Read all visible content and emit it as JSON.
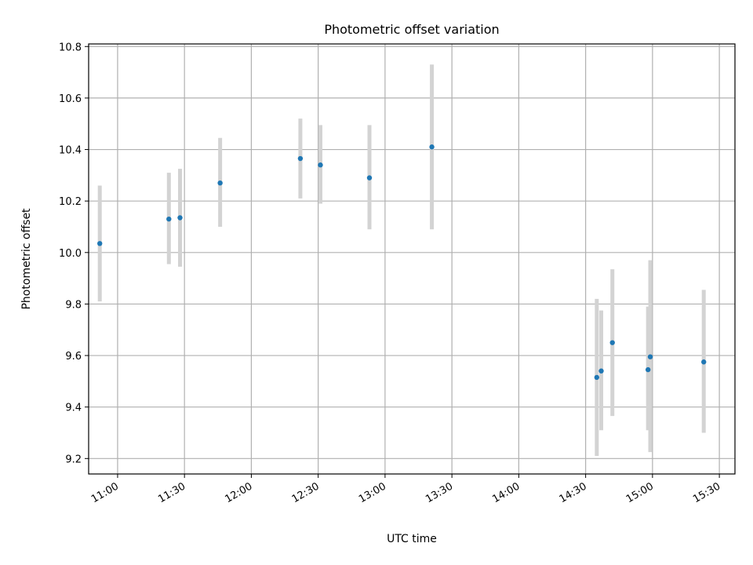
{
  "chart_data": {
    "type": "scatter",
    "title": "Photometric offset variation",
    "xlabel": "UTC time",
    "ylabel": "Photometric offset",
    "xlim": [
      "10:47",
      "15:37"
    ],
    "ylim": [
      9.14,
      10.81
    ],
    "x_ticks": [
      "11:00",
      "11:30",
      "12:00",
      "12:30",
      "13:00",
      "13:30",
      "14:00",
      "14:30",
      "15:00",
      "15:30"
    ],
    "y_ticks": [
      "9.2",
      "9.4",
      "9.6",
      "9.8",
      "10.0",
      "10.2",
      "10.4",
      "10.6",
      "10.8"
    ],
    "grid": true,
    "point_color": "#1f77b4",
    "errorbar_color": "#d3d3d3",
    "points": [
      {
        "x": "10:52",
        "y": 10.035,
        "y_low": 9.81,
        "y_high": 10.26
      },
      {
        "x": "11:23",
        "y": 10.13,
        "y_low": 9.955,
        "y_high": 10.31
      },
      {
        "x": "11:28",
        "y": 10.135,
        "y_low": 9.945,
        "y_high": 10.325
      },
      {
        "x": "11:46",
        "y": 10.27,
        "y_low": 10.1,
        "y_high": 10.445
      },
      {
        "x": "12:22",
        "y": 10.365,
        "y_low": 10.21,
        "y_high": 10.52
      },
      {
        "x": "12:31",
        "y": 10.34,
        "y_low": 10.19,
        "y_high": 10.495
      },
      {
        "x": "12:53",
        "y": 10.29,
        "y_low": 10.09,
        "y_high": 10.495
      },
      {
        "x": "13:21",
        "y": 10.41,
        "y_low": 10.09,
        "y_high": 10.73
      },
      {
        "x": "14:35",
        "y": 9.515,
        "y_low": 9.21,
        "y_high": 9.82
      },
      {
        "x": "14:37",
        "y": 9.54,
        "y_low": 9.31,
        "y_high": 9.775
      },
      {
        "x": "14:42",
        "y": 9.65,
        "y_low": 9.365,
        "y_high": 9.935
      },
      {
        "x": "14:58",
        "y": 9.545,
        "y_low": 9.31,
        "y_high": 9.79
      },
      {
        "x": "14:59",
        "y": 9.595,
        "y_low": 9.225,
        "y_high": 9.97
      },
      {
        "x": "15:23",
        "y": 9.575,
        "y_low": 9.3,
        "y_high": 9.855
      }
    ]
  }
}
